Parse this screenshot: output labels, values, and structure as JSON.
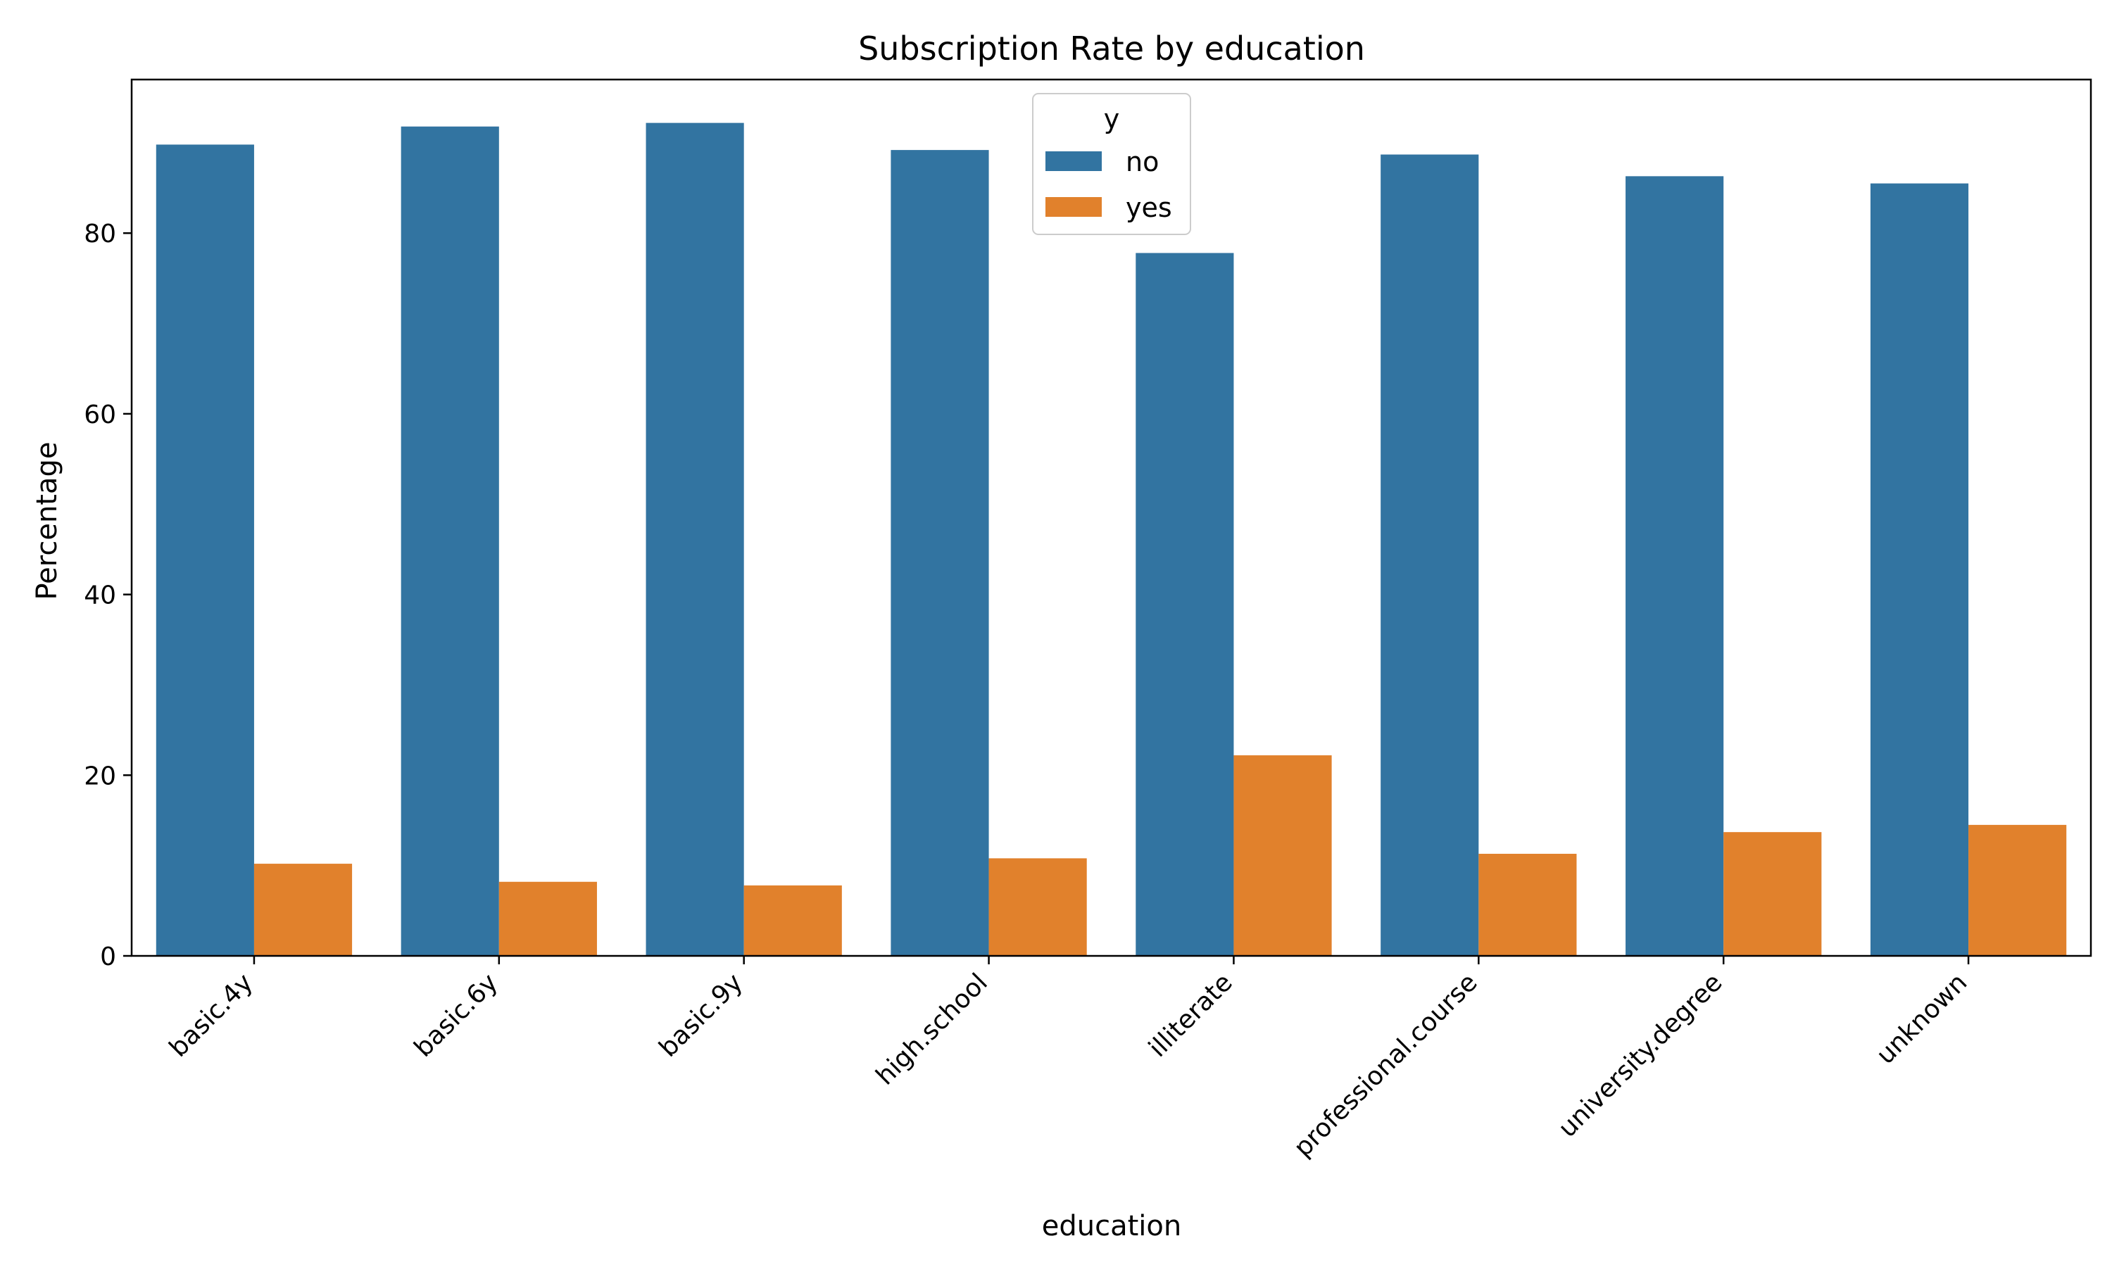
{
  "chart_data": {
    "type": "bar",
    "title": "Subscription Rate by education",
    "xlabel": "education",
    "ylabel": "Percentage",
    "categories": [
      "basic.4y",
      "basic.6y",
      "basic.9y",
      "high.school",
      "illiterate",
      "professional.course",
      "university.degree",
      "unknown"
    ],
    "series": [
      {
        "name": "no",
        "color": "#3274a1",
        "values": [
          89.8,
          91.8,
          92.2,
          89.2,
          77.8,
          88.7,
          86.3,
          85.5
        ]
      },
      {
        "name": "yes",
        "color": "#e1812c",
        "values": [
          10.2,
          8.2,
          7.8,
          10.8,
          22.2,
          11.3,
          13.7,
          14.5
        ]
      }
    ],
    "ylim": [
      0,
      97
    ],
    "yticks": [
      0,
      20,
      40,
      60,
      80
    ],
    "grid": false,
    "legend": {
      "title": "y",
      "position": "top-center"
    }
  }
}
